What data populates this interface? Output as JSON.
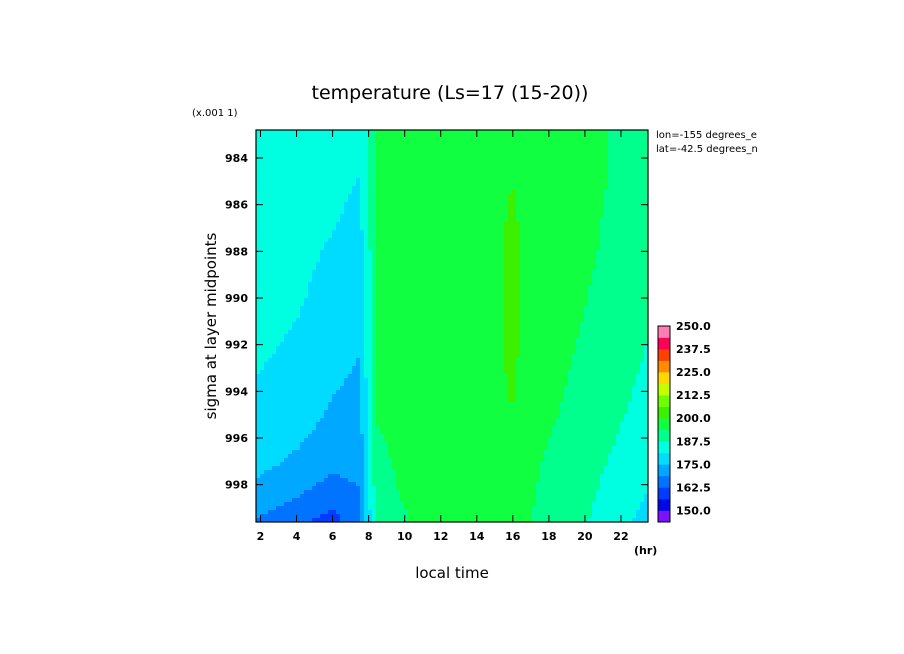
{
  "chart_data": {
    "type": "heatmap",
    "title": "temperature (Ls=17 (15-20))",
    "xlabel": "local time",
    "x_units": "(hr)",
    "ylabel": "sigma at layer midpoints",
    "y_scale_note": "(x.001 1)",
    "annotations": [
      "lon=-155 degrees_e",
      "lat=-42.5 degrees_n"
    ],
    "x_ticks": [
      "2",
      "4",
      "6",
      "8",
      "10",
      "12",
      "14",
      "16",
      "18",
      "20",
      "22"
    ],
    "y_ticks": [
      "984",
      "986",
      "988",
      "990",
      "992",
      "994",
      "996",
      "998"
    ],
    "xlim": [
      1.75,
      23.5
    ],
    "ylim": [
      999.6,
      982.8
    ],
    "colorbar": {
      "range": [
        143.75,
        250
      ],
      "step": 6.25,
      "labels": [
        "250.0",
        "237.5",
        "225.0",
        "212.5",
        "200.0",
        "187.5",
        "175.0",
        "162.5",
        "150.0"
      ],
      "colors": [
        "#7a12ff",
        "#0008e8",
        "#003cff",
        "#0074ff",
        "#00a8ff",
        "#00dcff",
        "#00ffe0",
        "#00ff8c",
        "#10ff40",
        "#3cf000",
        "#70ff00",
        "#c4ff00",
        "#ffd800",
        "#ff8c00",
        "#ff4000",
        "#ff0058",
        "#ff7eb4"
      ]
    },
    "x": [
      1.75,
      4,
      6,
      7.5,
      8.5,
      10.5,
      12.5,
      14.5,
      16,
      17.5,
      20,
      22,
      23.5
    ],
    "y": [
      982.8,
      985,
      987.5,
      990,
      992.5,
      995,
      997,
      998.5,
      999.6
    ],
    "temperature": [
      [
        187,
        186,
        185,
        183,
        194,
        195,
        197,
        198,
        199,
        197,
        195,
        193,
        192
      ],
      [
        186,
        184,
        183,
        181,
        194,
        195,
        197,
        198,
        200,
        197,
        195,
        193,
        192
      ],
      [
        185,
        183,
        181,
        179,
        194,
        195,
        197,
        198,
        201,
        197,
        195,
        192,
        191
      ],
      [
        184,
        182,
        179,
        177,
        194,
        195,
        197,
        198,
        201,
        196,
        194,
        191,
        189
      ],
      [
        182,
        180,
        177,
        175,
        194,
        195,
        197,
        198,
        201,
        196,
        193,
        190,
        187
      ],
      [
        180,
        178,
        174,
        173,
        194,
        195,
        197,
        198,
        200,
        195,
        192,
        188,
        185
      ],
      [
        177,
        174,
        171,
        171,
        193,
        195,
        197,
        198,
        199,
        194,
        190,
        186,
        183
      ],
      [
        173,
        169,
        165,
        168,
        192,
        195,
        197,
        198,
        198,
        193,
        189,
        184,
        181
      ],
      [
        168,
        164,
        160,
        167,
        191,
        194,
        196,
        198,
        197,
        192,
        188,
        183,
        179
      ]
    ]
  }
}
